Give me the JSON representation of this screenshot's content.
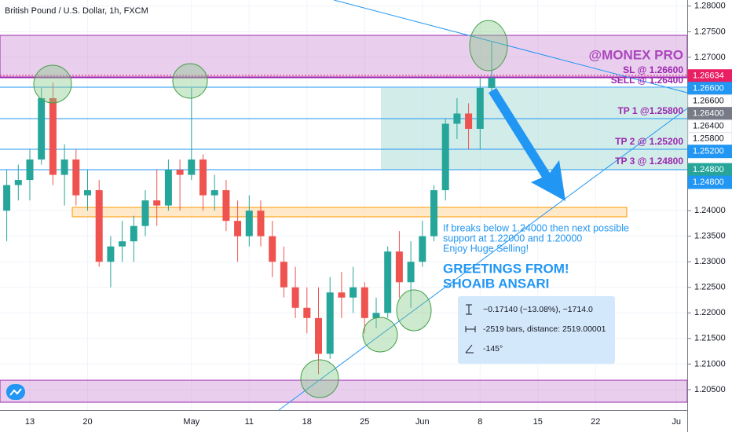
{
  "chart_data": {
    "type": "candlestick",
    "title": "British Pound / U.S. Dollar, 1h, FXCM",
    "categories": [
      null,
      null,
      "13",
      null,
      null,
      null,
      null,
      "20",
      null,
      null,
      null,
      null,
      null,
      null,
      null,
      null,
      "May",
      null,
      null,
      null,
      null,
      "11",
      null,
      null,
      null,
      null,
      "18",
      null,
      null,
      null,
      null,
      "25",
      null,
      null,
      null,
      null,
      "Jun",
      null,
      null,
      null,
      null,
      "8",
      null,
      null,
      null,
      null,
      "15",
      null,
      null,
      null,
      null,
      "22",
      null,
      null,
      null,
      null,
      null,
      null,
      "Ju"
    ],
    "open": [
      1.24,
      1.245,
      1.246,
      1.25,
      1.262,
      1.247,
      1.25,
      1.243,
      1.244,
      1.23,
      1.233,
      1.234,
      1.237,
      1.242,
      1.241,
      1.248,
      1.247,
      1.25,
      1.243,
      1.244,
      1.238,
      1.235,
      1.24,
      1.235,
      1.23,
      1.225,
      1.221,
      1.219,
      1.212,
      1.224,
      1.223,
      1.225,
      1.219,
      1.22,
      1.232,
      1.226,
      1.23,
      1.235,
      1.244,
      1.257,
      1.259,
      1.256,
      1.264,
      null,
      null,
      null,
      null,
      null,
      null,
      null,
      null,
      null,
      null,
      null,
      null,
      null,
      null,
      null,
      null
    ],
    "high": [
      1.248,
      1.249,
      1.252,
      1.264,
      1.265,
      1.253,
      1.252,
      1.248,
      1.246,
      1.235,
      1.238,
      1.239,
      1.244,
      1.248,
      1.25,
      1.25,
      1.264,
      1.251,
      1.247,
      1.246,
      1.242,
      1.243,
      1.242,
      1.238,
      1.233,
      1.229,
      1.225,
      1.225,
      1.227,
      1.228,
      1.229,
      1.226,
      1.223,
      1.233,
      1.236,
      1.234,
      1.238,
      1.245,
      1.258,
      1.262,
      1.261,
      1.266,
      1.273,
      null,
      null,
      null,
      null,
      null,
      null,
      null,
      null,
      null,
      null,
      null,
      null,
      null,
      null,
      null,
      null
    ],
    "low": [
      1.234,
      1.242,
      1.242,
      1.249,
      1.245,
      1.241,
      1.241,
      1.24,
      1.229,
      1.225,
      1.23,
      1.23,
      1.235,
      1.237,
      1.24,
      1.24,
      1.246,
      1.24,
      1.24,
      1.236,
      1.23,
      1.233,
      1.233,
      1.227,
      1.223,
      1.219,
      1.216,
      1.208,
      1.211,
      1.219,
      1.22,
      1.216,
      1.217,
      1.219,
      1.223,
      1.221,
      1.229,
      1.234,
      1.242,
      1.254,
      1.252,
      1.252,
      1.263,
      null,
      null,
      null,
      null,
      null,
      null,
      null,
      null,
      null,
      null,
      null,
      null,
      null,
      null,
      null,
      null
    ],
    "close": [
      1.245,
      1.246,
      1.25,
      1.262,
      1.247,
      1.25,
      1.243,
      1.244,
      1.23,
      1.233,
      1.234,
      1.237,
      1.242,
      1.241,
      1.248,
      1.247,
      1.25,
      1.243,
      1.244,
      1.238,
      1.235,
      1.24,
      1.235,
      1.23,
      1.225,
      1.221,
      1.219,
      1.212,
      1.224,
      1.223,
      1.225,
      1.219,
      1.22,
      1.232,
      1.226,
      1.23,
      1.235,
      1.244,
      1.257,
      1.259,
      1.256,
      1.264,
      1.266,
      null,
      null,
      null,
      null,
      null,
      null,
      null,
      null,
      null,
      null,
      null,
      null,
      null,
      null,
      null,
      null
    ],
    "up_color": "#26a69a",
    "down_color": "#ef5350",
    "ylim": [
      1.2013,
      1.2812
    ],
    "yticks": [
      {
        "value": 1.28,
        "label": "1.28000"
      },
      {
        "value": 1.275,
        "label": "1.27500"
      },
      {
        "value": 1.27,
        "label": "1.27000"
      },
      {
        "value": 1.24,
        "label": "1.24000"
      },
      {
        "value": 1.235,
        "label": "1.23500"
      },
      {
        "value": 1.23,
        "label": "1.23000"
      },
      {
        "value": 1.225,
        "label": "1.22500"
      },
      {
        "value": 1.22,
        "label": "1.22000"
      },
      {
        "value": 1.215,
        "label": "1.21500"
      },
      {
        "value": 1.21,
        "label": "1.21000"
      },
      {
        "value": 1.205,
        "label": "1.20500"
      }
    ],
    "grid": true,
    "price_tags": [
      {
        "value": 1.26634,
        "label": "1.26634",
        "bg": "#e91e63",
        "fg": "#ffffff"
      },
      {
        "value": 1.266,
        "label": "1.26600",
        "bg": "#2196f3",
        "fg": "#ffffff"
      },
      {
        "value": 1.266,
        "label": "1.26600",
        "bg": "#ffffff",
        "fg": "#131722"
      },
      {
        "value": 1.264,
        "label": "1.26400",
        "bg": "#787b86",
        "fg": "#ffffff"
      },
      {
        "value": 1.264,
        "label": "1.26400",
        "bg": "#ffffff",
        "fg": "#131722"
      },
      {
        "value": 1.258,
        "label": "1.25800",
        "bg": "#ffffff",
        "fg": "#131722"
      },
      {
        "value": 1.252,
        "label": "1.25200",
        "bg": "#2196f3",
        "fg": "#ffffff"
      },
      {
        "value": 1.248,
        "label": "1.24800",
        "bg": "#26a69a",
        "fg": "#ffffff"
      },
      {
        "value": 1.248,
        "label": "1.24800",
        "bg": "#2196f3",
        "fg": "#ffffff"
      }
    ],
    "annotations": {
      "watermark": "@MONEX PRO",
      "sl": "SL @ 1.26600",
      "sell": "SELL @ 1.26400",
      "tp1": "TP 1 @1.25800",
      "tp2": "TP 2 @ 1.25200",
      "tp3": "TP 3 @ 1.24800",
      "note": [
        "If breaks below 1.24000 then next possible",
        "support at 1.22000 and 1.20000",
        "Enjoy Huge Selling!"
      ],
      "greeting": [
        "GREETINGS FROM!",
        "SHOAIB ANSARI"
      ],
      "measure": [
        "−0.17140 (−13.08%), −1714.0",
        "-2519 bars, distance: 2519.00001",
        "-145°"
      ]
    }
  }
}
